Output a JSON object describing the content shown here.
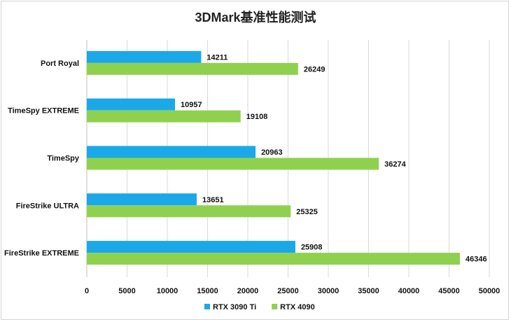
{
  "chart_data": {
    "type": "bar",
    "orientation": "horizontal",
    "title": "3DMark基准性能测试",
    "categories": [
      "Port Royal",
      "TimeSpy EXTREME",
      "TimeSpy",
      "FireStrike ULTRA",
      "FireStrike EXTREME"
    ],
    "series": [
      {
        "name": "RTX 3090 Ti",
        "color": "#1BA8E8",
        "values": [
          14211,
          10957,
          20963,
          13651,
          25908
        ]
      },
      {
        "name": "RTX 4090",
        "color": "#8FD14F",
        "values": [
          26249,
          19108,
          36274,
          25325,
          46346
        ]
      }
    ],
    "xlim": [
      0,
      50000
    ],
    "xticks": [
      0,
      5000,
      10000,
      15000,
      20000,
      25000,
      30000,
      35000,
      40000,
      45000,
      50000
    ],
    "grid": "vertical",
    "legend_position": "bottom"
  }
}
